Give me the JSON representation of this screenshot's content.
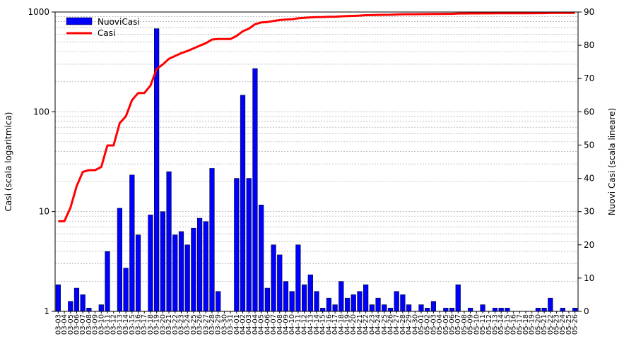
{
  "chart_data": {
    "type": "bar+line",
    "left_axis": {
      "label": "Casi (scala logaritmica)",
      "scale": "log",
      "range": [
        1,
        1000
      ],
      "ticks": [
        "1",
        "10",
        "100",
        "1000"
      ]
    },
    "right_axis": {
      "label": "Nuovi Casi (scala lineare)",
      "scale": "linear",
      "range": [
        0,
        90
      ],
      "ticks": [
        "0",
        "10",
        "20",
        "30",
        "40",
        "50",
        "60",
        "70",
        "80",
        "90"
      ]
    },
    "legend": {
      "position": "top-left",
      "entries": [
        {
          "label": "NuoviCasi",
          "color": "#0000ff",
          "kind": "bar"
        },
        {
          "label": "Casi",
          "color": "#ff0000",
          "kind": "line"
        }
      ]
    },
    "grid": true,
    "x": [
      "03-03",
      "03-04",
      "03-05",
      "03-06",
      "03-07",
      "03-08",
      "03-09",
      "03-10",
      "03-11",
      "03-12",
      "03-13",
      "03-14",
      "03-15",
      "03-16",
      "03-17",
      "03-18",
      "03-19",
      "03-20",
      "03-21",
      "03-22",
      "03-23",
      "03-24",
      "03-25",
      "03-26",
      "03-27",
      "03-28",
      "03-29",
      "03-30",
      "03-31",
      "04-01",
      "04-02",
      "04-03",
      "04-04",
      "04-05",
      "04-06",
      "04-07",
      "04-08",
      "04-09",
      "04-10",
      "04-11",
      "04-12",
      "04-13",
      "04-14",
      "04-15",
      "04-16",
      "04-17",
      "04-18",
      "04-19",
      "04-20",
      "04-21",
      "04-22",
      "04-23",
      "04-24",
      "04-25",
      "04-26",
      "04-27",
      "04-28",
      "04-29",
      "04-30",
      "05-01",
      "05-02",
      "05-03",
      "05-04",
      "05-05",
      "05-06",
      "05-07",
      "05-08",
      "05-09",
      "05-10",
      "05-11",
      "05-12",
      "05-13",
      "05-14",
      "05-15",
      "05-16",
      "05-17",
      "05-18",
      "05-19",
      "05-20",
      "05-21",
      "05-22",
      "05-23",
      "05-24",
      "05-25",
      "05-26"
    ],
    "series": [
      {
        "name": "NuoviCasi",
        "type": "bar",
        "axis": "right",
        "color": "#0000ff",
        "values": [
          8,
          0,
          3,
          7,
          5,
          1,
          0,
          2,
          18,
          0,
          31,
          13,
          41,
          23,
          0,
          29,
          85,
          30,
          42,
          23,
          24,
          20,
          25,
          28,
          27,
          43,
          6,
          0,
          0,
          40,
          65,
          40,
          73,
          32,
          7,
          20,
          17,
          9,
          6,
          20,
          8,
          11,
          6,
          1,
          4,
          2,
          9,
          4,
          5,
          6,
          8,
          2,
          4,
          2,
          1,
          6,
          5,
          2,
          0,
          2,
          1,
          3,
          0,
          1,
          1,
          8,
          0,
          1,
          0,
          2,
          0,
          1,
          1,
          1,
          0,
          0,
          0,
          0,
          1,
          1,
          4,
          0,
          1,
          0,
          1
        ]
      },
      {
        "name": "Casi",
        "type": "line",
        "axis": "left",
        "color": "#ff0000",
        "values": [
          8,
          8,
          11,
          18,
          25,
          26,
          26,
          28,
          46,
          46,
          77,
          90,
          131,
          154,
          154,
          183,
          268,
          298,
          340,
          363,
          387,
          407,
          432,
          460,
          487,
          530,
          536,
          536,
          536,
          576,
          641,
          681,
          754,
          786,
          793,
          813,
          830,
          839,
          845,
          865,
          873,
          884,
          890,
          891,
          895,
          897,
          906,
          910,
          915,
          921,
          929,
          931,
          935,
          937,
          938,
          944,
          949,
          951,
          951,
          953,
          954,
          957,
          957,
          958,
          959,
          967,
          967,
          968,
          968,
          970,
          970,
          971,
          972,
          973,
          973,
          973,
          973,
          973,
          974,
          975,
          979,
          979,
          980,
          980,
          981
        ]
      }
    ]
  }
}
